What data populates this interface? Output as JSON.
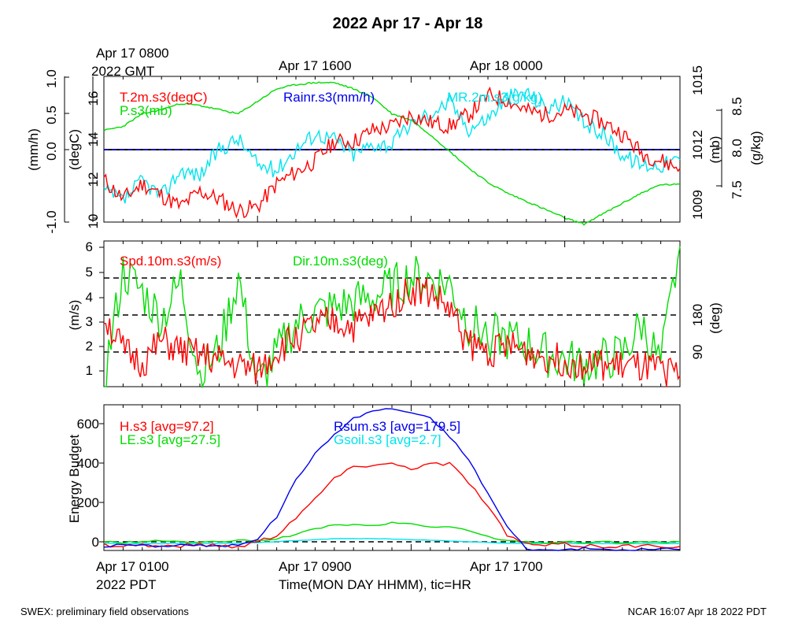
{
  "header": {
    "title": "2022 Apr 17 - Apr 18",
    "top_time_1": "Apr 17 0800",
    "top_time_1b": "2022 GMT",
    "top_time_2": "Apr 17 1600",
    "top_time_3": "Apr 18 0000"
  },
  "footer": {
    "left": "SWEX: preliminary field observations",
    "right": "NCAR 16:07 Apr 18 2022 PDT",
    "xlabel": "Time(MON DAY HHMM), tic=HR",
    "xtick_1": "Apr 17 0100",
    "xtick_1b": "2022 PDT",
    "xtick_2": "Apr 17 0900",
    "xtick_3": "Apr 17 1700"
  },
  "panel1": {
    "legend_t": "T.2m.s3(degC)",
    "legend_p": "P.s3(mb)",
    "legend_rain": "Rainr.s3(mm/h)",
    "legend_mr": "MR.2m.s3(g/kg)",
    "unit_rain": "(mm/h)",
    "unit_t": "(degC)",
    "unit_p": "(mb)",
    "unit_mr": "(g/kg)",
    "rain_ticks": [
      "-1.0",
      "0.0",
      "0.5",
      "1.0"
    ],
    "t_ticks": [
      "10",
      "12",
      "14",
      "16"
    ],
    "p_ticks": [
      "1009",
      "1012",
      "1015"
    ],
    "mr_ticks": [
      "7.5",
      "8.0",
      "8.5"
    ]
  },
  "panel2": {
    "legend_spd": "Spd.10m.s3(m/s)",
    "legend_dir": "Dir.10m.s3(deg)",
    "unit_spd": "(m/s)",
    "unit_dir": "(deg)",
    "spd_ticks": [
      "1",
      "2",
      "3",
      "4",
      "5",
      "6"
    ],
    "dir_ticks": [
      "90",
      "180"
    ]
  },
  "panel3": {
    "legend_h": "H.s3 [avg=97.2]",
    "legend_le": "LE.s3 [avg=27.5]",
    "legend_rsum": "Rsum.s3 [avg=179.5]",
    "legend_gsoil": "Gsoil.s3 [avg=2.7]",
    "ylabel": "Energy Budget",
    "ticks": [
      "0",
      "200",
      "400",
      "600"
    ]
  },
  "colors": {
    "red": "#ff0000",
    "green": "#00dd00",
    "blue": "#0000ee",
    "cyan": "#00e5ee",
    "black": "#000000"
  },
  "chart_data": [
    {
      "type": "line",
      "panel": "top",
      "x_hours_pdt": "0 to 30 (Apr 17 0100 PDT to Apr 18 0700 PDT)",
      "series": [
        {
          "name": "T.2m.s3(degC)",
          "axis": "degC",
          "x": [
            0,
            1,
            2,
            3,
            4,
            5,
            6,
            7,
            8,
            9,
            10,
            11,
            12,
            13,
            14,
            15,
            16,
            17,
            18,
            19,
            20,
            21,
            22,
            23,
            24,
            25,
            26,
            27,
            28,
            29,
            30
          ],
          "values": [
            12.2,
            11.2,
            12.0,
            11.4,
            10.8,
            11.6,
            11.2,
            10.6,
            10.8,
            12.0,
            12.6,
            13.2,
            14.2,
            14.2,
            14.8,
            15.0,
            15.6,
            15.2,
            15.0,
            15.6,
            16.6,
            16.4,
            15.8,
            15.6,
            15.8,
            15.6,
            15.2,
            14.6,
            13.6,
            13.2,
            12.8
          ]
        },
        {
          "name": "P.s3(mb)",
          "axis": "mb",
          "x": [
            0,
            1,
            2,
            3,
            4,
            5,
            6,
            7,
            8,
            9,
            10,
            11,
            12,
            13,
            14,
            15,
            16,
            17,
            18,
            19,
            20,
            21,
            22,
            23,
            24,
            25,
            26,
            27,
            28,
            29,
            30
          ],
          "values": [
            1013.0,
            1013.2,
            1013.8,
            1014.0,
            1014.3,
            1014.2,
            1014.0,
            1013.8,
            1014.4,
            1015.0,
            1015.2,
            1015.3,
            1015.3,
            1015.0,
            1014.6,
            1013.8,
            1013.5,
            1012.8,
            1012.0,
            1011.2,
            1010.5,
            1010.0,
            1009.6,
            1009.2,
            1008.8,
            1008.5,
            1009.0,
            1009.5,
            1010.0,
            1010.4,
            1010.4
          ]
        },
        {
          "name": "MR.2m.s3(g/kg)",
          "axis": "g/kg",
          "x": [
            0,
            1,
            2,
            3,
            4,
            5,
            6,
            7,
            8,
            9,
            10,
            11,
            12,
            13,
            14,
            15,
            16,
            17,
            18,
            19,
            20,
            21,
            22,
            23,
            24,
            25,
            26,
            27,
            28,
            29,
            30
          ],
          "values": [
            7.65,
            7.55,
            7.75,
            7.6,
            7.85,
            7.8,
            8.05,
            8.15,
            7.9,
            7.85,
            8.05,
            8.2,
            8.15,
            8.0,
            8.1,
            8.1,
            8.3,
            8.4,
            8.5,
            8.25,
            8.35,
            8.55,
            8.6,
            8.45,
            8.5,
            8.3,
            8.2,
            8.0,
            7.9,
            7.9,
            7.95
          ]
        },
        {
          "name": "Rainr.s3(mm/h)",
          "axis": "mm/h",
          "x": [
            0,
            30
          ],
          "values": [
            0,
            0
          ]
        }
      ],
      "ylim_degC": [
        10,
        17.6
      ],
      "ylim_mb": [
        1008.6,
        1015.6
      ],
      "ylim_gkg": [
        7.35,
        8.75
      ],
      "ylim_mmh": [
        -1.0,
        1.0
      ]
    },
    {
      "type": "line",
      "panel": "middle",
      "series": [
        {
          "name": "Spd.10m.s3(m/s)",
          "axis": "m/s",
          "x": [
            0,
            1,
            2,
            3,
            4,
            5,
            6,
            7,
            8,
            9,
            10,
            11,
            12,
            13,
            14,
            15,
            16,
            17,
            18,
            19,
            20,
            21,
            22,
            23,
            24,
            25,
            26,
            27,
            28,
            29,
            30
          ],
          "values": [
            3.3,
            1.8,
            1.3,
            2.2,
            1.8,
            1.6,
            1.4,
            1.2,
            1.0,
            1.8,
            2.4,
            2.8,
            3.0,
            2.8,
            3.2,
            3.8,
            4.3,
            4.2,
            3.5,
            2.1,
            1.8,
            2.0,
            1.8,
            1.6,
            1.4,
            1.3,
            1.2,
            1.2,
            1.1,
            1.0,
            0.8
          ]
        },
        {
          "name": "Dir.10m.s3(deg)",
          "axis": "deg",
          "x": [
            0,
            1,
            2,
            3,
            4,
            5,
            6,
            7,
            8,
            9,
            10,
            11,
            12,
            13,
            14,
            15,
            16,
            17,
            18,
            19,
            20,
            21,
            22,
            23,
            24,
            25,
            26,
            27,
            28,
            29,
            30
          ],
          "values": [
            30,
            240,
            200,
            150,
            220,
            40,
            90,
            230,
            20,
            80,
            140,
            160,
            170,
            180,
            190,
            210,
            230,
            225,
            215,
            140,
            120,
            110,
            100,
            80,
            70,
            60,
            70,
            80,
            140,
            60,
            290
          ]
        }
      ],
      "ylim_ms": [
        0.35,
        6.3
      ],
      "ylim_deg": [
        19,
        300
      ]
    },
    {
      "type": "line",
      "panel": "bottom",
      "ylabel": "Energy Budget",
      "series": [
        {
          "name": "Rsum.s3 [avg=179.5]",
          "x": [
            0,
            1,
            2,
            3,
            4,
            5,
            6,
            7,
            8,
            9,
            10,
            11,
            12,
            13,
            14,
            15,
            16,
            17,
            18,
            19,
            20,
            21,
            22,
            23,
            24,
            25,
            26,
            27,
            28,
            29,
            30
          ],
          "values": [
            -20,
            -10,
            -15,
            -20,
            -10,
            -15,
            -20,
            -10,
            20,
            130,
            320,
            450,
            550,
            630,
            670,
            680,
            660,
            630,
            540,
            420,
            250,
            80,
            -30,
            -40,
            -35,
            -30,
            -35,
            -40,
            -35,
            -30,
            -35
          ]
        },
        {
          "name": "H.s3 [avg=97.2]",
          "x": [
            0,
            1,
            2,
            3,
            4,
            5,
            6,
            7,
            8,
            9,
            10,
            11,
            12,
            13,
            14,
            15,
            16,
            17,
            18,
            19,
            20,
            21,
            22,
            23,
            24,
            25,
            26,
            27,
            28,
            29,
            30
          ],
          "values": [
            -10,
            -15,
            -10,
            -20,
            -15,
            -10,
            -15,
            -20,
            5,
            40,
            130,
            220,
            330,
            380,
            400,
            400,
            380,
            400,
            400,
            310,
            180,
            40,
            -10,
            -15,
            -10,
            -15,
            -20,
            -15,
            -20,
            -15,
            -20
          ]
        },
        {
          "name": "LE.s3 [avg=27.5]",
          "x": [
            0,
            1,
            2,
            3,
            4,
            5,
            6,
            7,
            8,
            9,
            10,
            11,
            12,
            13,
            14,
            15,
            16,
            17,
            18,
            19,
            20,
            21,
            22,
            23,
            24,
            25,
            26,
            27,
            28,
            29,
            30
          ],
          "values": [
            5,
            0,
            5,
            10,
            5,
            0,
            5,
            10,
            10,
            20,
            40,
            70,
            90,
            90,
            85,
            100,
            95,
            80,
            80,
            60,
            30,
            10,
            5,
            0,
            5,
            0,
            5,
            0,
            5,
            0,
            5
          ]
        },
        {
          "name": "Gsoil.s3 [avg=2.7]",
          "x": [
            0,
            1,
            2,
            3,
            4,
            5,
            6,
            7,
            8,
            9,
            10,
            11,
            12,
            13,
            14,
            15,
            16,
            17,
            18,
            19,
            20,
            21,
            22,
            23,
            24,
            25,
            26,
            27,
            28,
            29,
            30
          ],
          "values": [
            -5,
            -5,
            -5,
            -5,
            -5,
            -5,
            -5,
            -5,
            0,
            5,
            10,
            15,
            20,
            20,
            20,
            18,
            15,
            12,
            8,
            5,
            0,
            -3,
            -5,
            -5,
            -5,
            -5,
            -5,
            -5,
            -5,
            -5,
            -5
          ]
        }
      ],
      "ylim": [
        -40,
        700
      ]
    }
  ]
}
